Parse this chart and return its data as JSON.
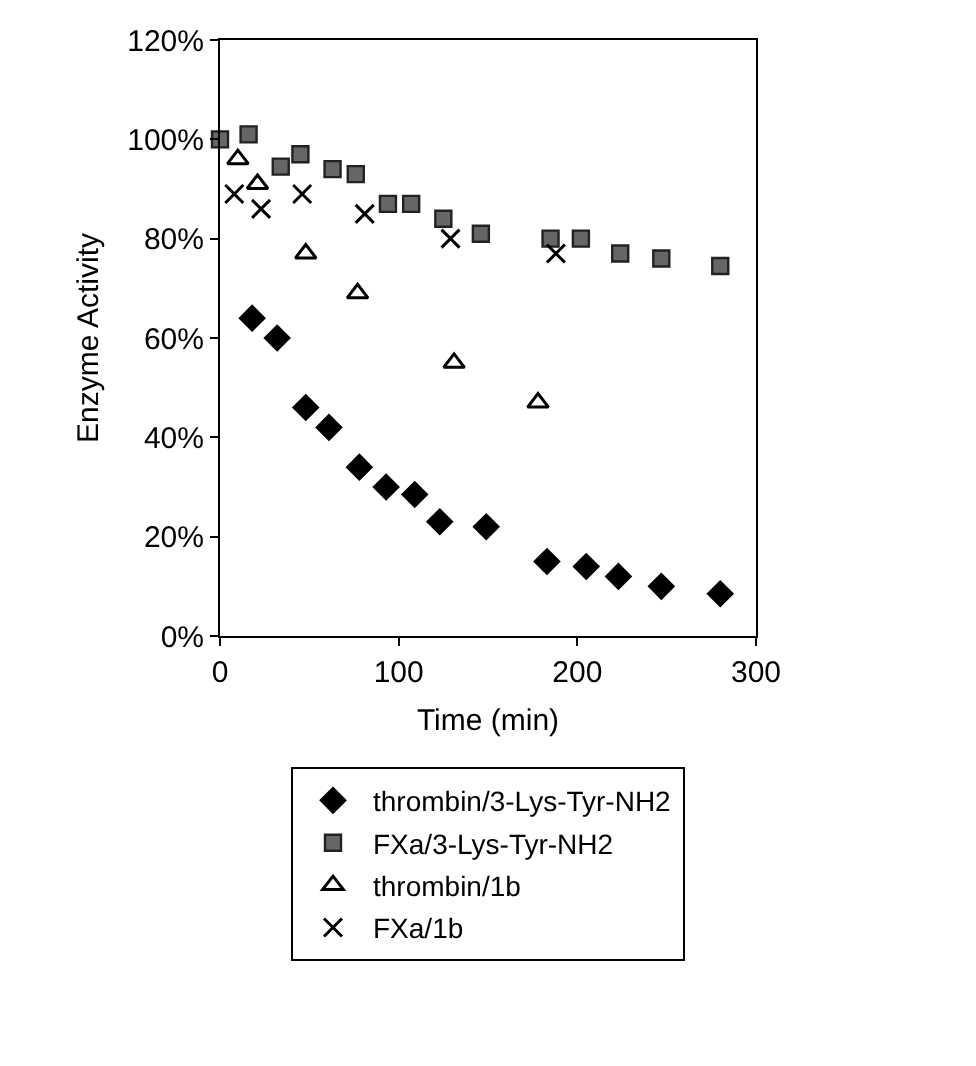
{
  "chart_data": {
    "type": "scatter",
    "xlabel": "Time (min)",
    "ylabel": "Enzyme Activity",
    "xlim": [
      0,
      300
    ],
    "xticks": [
      0,
      100,
      200,
      300
    ],
    "ylim": [
      0,
      120
    ],
    "yticks": [
      {
        "value": 0,
        "label": "0%"
      },
      {
        "value": 20,
        "label": "20%"
      },
      {
        "value": 40,
        "label": "40%"
      },
      {
        "value": 60,
        "label": "60%"
      },
      {
        "value": 80,
        "label": "80%"
      },
      {
        "value": 100,
        "label": "100%"
      },
      {
        "value": 120,
        "label": "120%"
      }
    ],
    "grid": false,
    "legend": "bottom",
    "series": [
      {
        "name": "thrombin/3-Lys-Tyr-NH2",
        "color": "#000000",
        "marker": "diamond",
        "x": [
          18,
          32,
          48,
          61,
          78,
          93,
          109,
          123,
          149,
          183,
          205,
          223,
          247,
          280
        ],
        "values": [
          64,
          60,
          46,
          42,
          34,
          30,
          28.5,
          23,
          22,
          15,
          14,
          12,
          10,
          8.5
        ]
      },
      {
        "name": "FXa/3-Lys-Tyr-NH2",
        "color": "#666666",
        "marker": "square",
        "x": [
          0,
          16,
          34,
          45,
          63,
          76,
          94,
          107,
          125,
          146,
          185,
          202,
          224,
          247,
          280
        ],
        "values": [
          100,
          101,
          94.5,
          97,
          94,
          93,
          87,
          87,
          84,
          81,
          80,
          80,
          77,
          76,
          74.5
        ]
      },
      {
        "name": "thrombin/1b",
        "color": "#000000",
        "marker": "triangle",
        "x": [
          10,
          21,
          48,
          77,
          131,
          178
        ],
        "values": [
          96,
          91,
          77,
          69,
          55,
          47
        ]
      },
      {
        "name": "FXa/1b",
        "color": "#000000",
        "marker": "cross",
        "x": [
          8,
          23,
          46,
          81,
          129,
          188
        ],
        "values": [
          89,
          86,
          89,
          85,
          80,
          77
        ]
      }
    ]
  }
}
